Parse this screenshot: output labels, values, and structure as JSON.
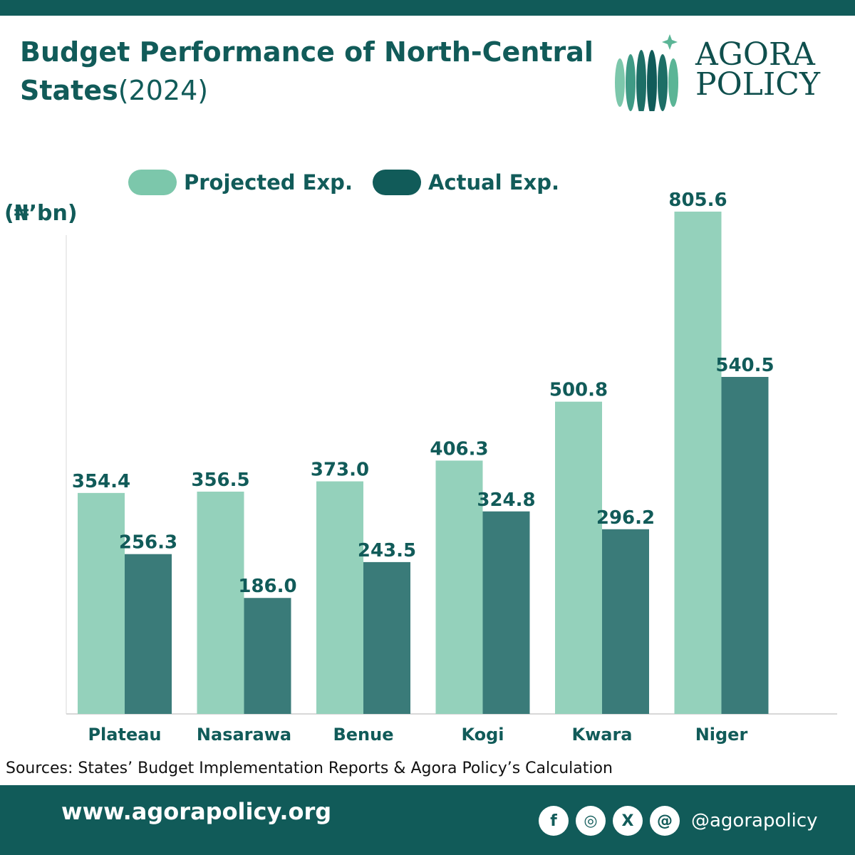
{
  "header": {
    "title_main": "Budget Performance of  North-Central States",
    "title_year": "(2024)"
  },
  "logo": {
    "line1": "AGORA",
    "line2": "POLICY"
  },
  "colors": {
    "brand": "#115b59",
    "projected": "#94d1bb",
    "actual": "#3a7b79",
    "legend_projected": "#7cc7ab",
    "legend_actual": "#115b59"
  },
  "chart_data": {
    "type": "bar",
    "title": "Budget Performance of  North-Central States(2024)",
    "ylabel": "(₦’bn)",
    "xlabel": "",
    "ylim": [
      0,
      805.6
    ],
    "grid": false,
    "legend_position": "top",
    "categories": [
      "Plateau",
      "Nasarawa",
      "Benue",
      "Kogi",
      "Kwara",
      "Niger"
    ],
    "series": [
      {
        "name": "Projected Exp.",
        "values": [
          354.4,
          356.5,
          373.0,
          406.3,
          500.8,
          805.6
        ],
        "labels": [
          "354.4",
          "356.5",
          "373.0",
          "406.3",
          "500.8",
          "805.6"
        ]
      },
      {
        "name": "Actual Exp.",
        "values": [
          256.3,
          186.0,
          243.5,
          324.8,
          296.2,
          540.5
        ],
        "labels": [
          "256.3",
          "186.0",
          "243.5",
          "324.8",
          "296.2",
          "540.5"
        ]
      }
    ]
  },
  "source": "Sources: States’ Budget Implementation Reports & Agora Policy’s Calculation",
  "footer": {
    "website": "www.agorapolicy.org",
    "handle": "@agorapolicy",
    "socials": [
      {
        "icon": "facebook-icon",
        "glyph": "f"
      },
      {
        "icon": "instagram-icon",
        "glyph": "◎"
      },
      {
        "icon": "x-icon",
        "glyph": "X"
      },
      {
        "icon": "threads-icon",
        "glyph": "@"
      }
    ]
  }
}
